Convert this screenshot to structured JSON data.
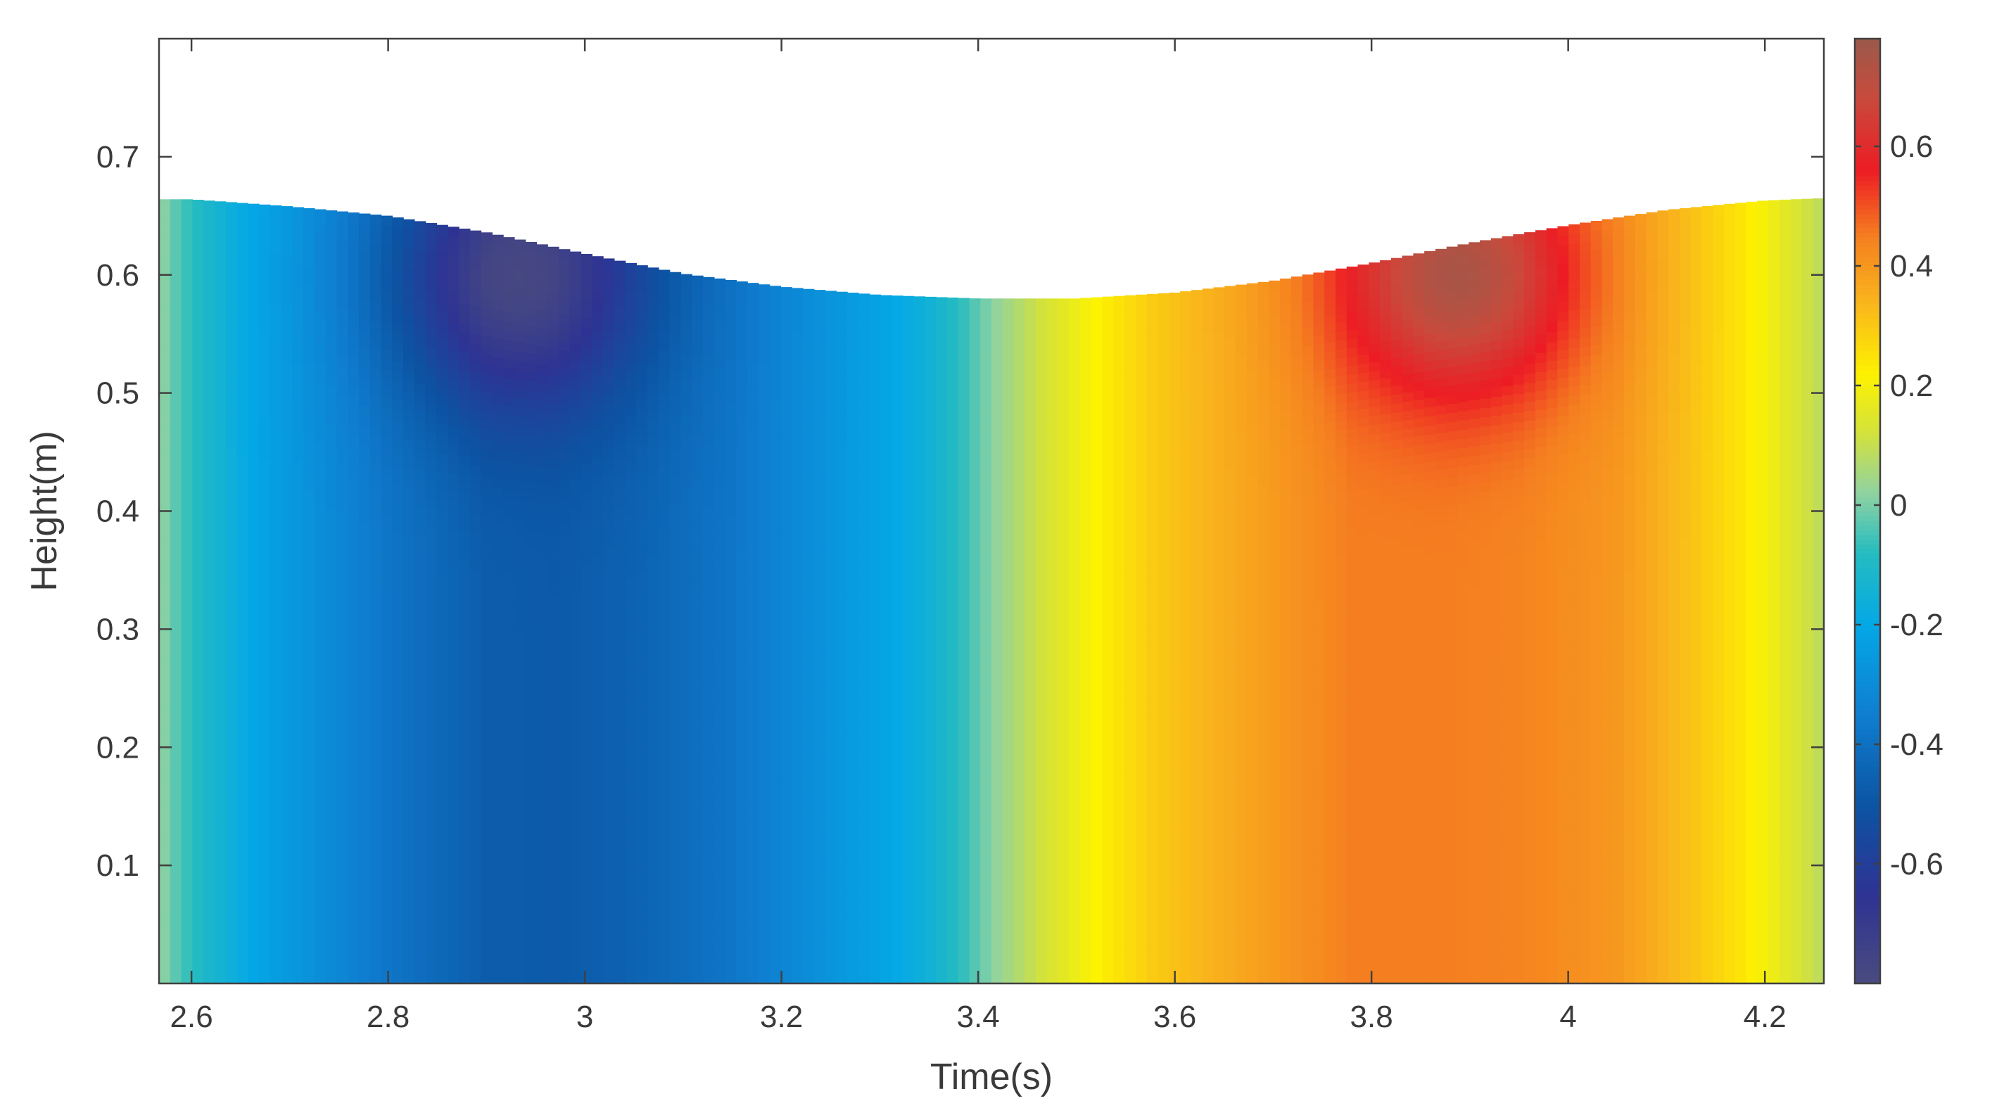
{
  "chart_data": {
    "type": "heatmap",
    "xlabel": "Time(s)",
    "ylabel": "Height(m)",
    "xlim": [
      2.567,
      4.26
    ],
    "ylim": [
      0.0,
      0.8
    ],
    "x_ticks": [
      2.6,
      2.8,
      3.0,
      3.2,
      3.4,
      3.6,
      3.8,
      4.0,
      4.2
    ],
    "x_tick_labels": [
      "2.6",
      "2.8",
      "3",
      "3.2",
      "3.4",
      "3.6",
      "3.8",
      "4",
      "4.2"
    ],
    "y_ticks": [
      0.1,
      0.2,
      0.3,
      0.4,
      0.5,
      0.6,
      0.7
    ],
    "y_tick_labels": [
      "0.1",
      "0.2",
      "0.3",
      "0.4",
      "0.5",
      "0.6",
      "0.7"
    ],
    "colorbar": {
      "range": [
        -0.8,
        0.78
      ],
      "ticks": [
        -0.6,
        -0.4,
        -0.2,
        0,
        0.2,
        0.4,
        0.6
      ],
      "tick_labels": [
        "-0.6",
        "-0.4",
        "-0.2",
        "0",
        "0.2",
        "0.4",
        "0.6"
      ],
      "placement": "right"
    },
    "colormap": [
      {
        "v": -0.8,
        "color": "#4a4b7f"
      },
      {
        "v": -0.65,
        "color": "#2e3393"
      },
      {
        "v": -0.5,
        "color": "#0c54a3"
      },
      {
        "v": -0.35,
        "color": "#0f7ed0"
      },
      {
        "v": -0.2,
        "color": "#04a8e6"
      },
      {
        "v": -0.08,
        "color": "#25bcc0"
      },
      {
        "v": 0.02,
        "color": "#8fd2a2"
      },
      {
        "v": 0.12,
        "color": "#d3e23c"
      },
      {
        "v": 0.22,
        "color": "#fdf200"
      },
      {
        "v": 0.34,
        "color": "#f9b51c"
      },
      {
        "v": 0.45,
        "color": "#f57f20"
      },
      {
        "v": 0.56,
        "color": "#ed1c24"
      },
      {
        "v": 0.68,
        "color": "#c94a3c"
      },
      {
        "v": 0.78,
        "color": "#9b594b"
      }
    ],
    "surface_profile": {
      "t": [
        2.567,
        2.6,
        2.7,
        2.8,
        2.9,
        3.0,
        3.1,
        3.2,
        3.3,
        3.4,
        3.5,
        3.6,
        3.7,
        3.8,
        3.9,
        4.0,
        4.1,
        4.2,
        4.26
      ],
      "h": [
        0.664,
        0.664,
        0.658,
        0.65,
        0.636,
        0.618,
        0.601,
        0.59,
        0.583,
        0.58,
        0.58,
        0.585,
        0.595,
        0.61,
        0.627,
        0.642,
        0.655,
        0.663,
        0.665
      ]
    },
    "column_profile": {
      "t": [
        2.567,
        2.59,
        2.62,
        2.66,
        2.72,
        2.8,
        2.9,
        2.97,
        3.05,
        3.15,
        3.25,
        3.3,
        3.35,
        3.38,
        3.42,
        3.47,
        3.52,
        3.58,
        3.68,
        3.78,
        3.88,
        3.95,
        4.05,
        4.12,
        4.18,
        4.23,
        4.26
      ],
      "v": [
        0.03,
        -0.05,
        -0.12,
        -0.2,
        -0.28,
        -0.38,
        -0.47,
        -0.48,
        -0.45,
        -0.38,
        -0.27,
        -0.22,
        -0.15,
        -0.08,
        0.03,
        0.13,
        0.22,
        0.3,
        0.38,
        0.45,
        0.45,
        0.44,
        0.4,
        0.32,
        0.24,
        0.14,
        0.08
      ]
    },
    "near_surface_extrema": [
      {
        "t": 2.93,
        "h": 0.6,
        "v": -0.78,
        "radius_t": 0.16,
        "radius_h": 0.14
      },
      {
        "t": 3.89,
        "h": 0.6,
        "v": 0.75,
        "radius_t": 0.15,
        "radius_h": 0.13
      }
    ]
  }
}
